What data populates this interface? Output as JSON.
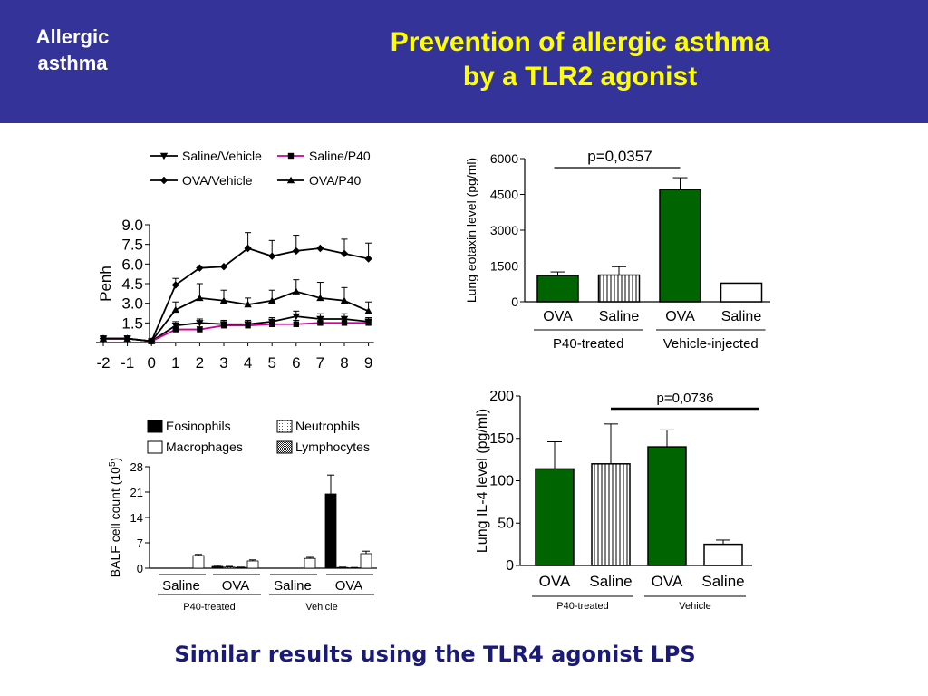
{
  "header": {
    "section_label": "Allergic asthma",
    "title_line1": "Prevention of allergic asthma",
    "title_line2": "by a TLR2 agonist",
    "background_color": "#333399",
    "title_color": "#ffff00"
  },
  "footer": {
    "text": "Similar results using the TLR4 agonist LPS",
    "color": "#1a1a7a"
  },
  "chart_data": [
    {
      "id": "penh",
      "type": "line",
      "ylabel": "Penh",
      "x": [
        -2,
        -1,
        0,
        1,
        2,
        3,
        4,
        5,
        6,
        7,
        8,
        9
      ],
      "xticks": [
        "-2",
        "-1",
        "0",
        "1",
        "2",
        "3",
        "4",
        "5",
        "6",
        "7",
        "8",
        "9"
      ],
      "yticks": [
        "1.5",
        "3.0",
        "4.5",
        "6.0",
        "7.5",
        "9.0"
      ],
      "ylim": [
        0,
        9
      ],
      "legend_position": "top",
      "series": [
        {
          "name": "Saline/Vehicle",
          "marker": "triangle-down",
          "color": "#000000",
          "values": [
            0.3,
            0.3,
            0.1,
            1.3,
            1.5,
            1.4,
            1.4,
            1.6,
            2.0,
            1.8,
            1.8,
            1.6
          ],
          "errors": [
            0.2,
            0.2,
            0.1,
            0.3,
            0.3,
            0.3,
            0.3,
            0.3,
            0.4,
            0.4,
            0.4,
            0.3
          ]
        },
        {
          "name": "Saline/P40",
          "marker": "square",
          "color": "#cc0099",
          "values": [
            0.3,
            0.3,
            0.1,
            1.0,
            1.0,
            1.3,
            1.3,
            1.4,
            1.4,
            1.5,
            1.5,
            1.5
          ],
          "errors": [
            0.2,
            0.2,
            0.1,
            0.2,
            0.2,
            0.3,
            0.3,
            0.3,
            0.3,
            0.3,
            0.3,
            0.3
          ]
        },
        {
          "name": "OVA/Vehicle",
          "marker": "diamond",
          "color": "#000000",
          "values": [
            0.3,
            0.3,
            0.1,
            4.4,
            5.7,
            5.8,
            7.2,
            6.6,
            7.0,
            7.2,
            6.8,
            6.4
          ],
          "errors": [
            0.2,
            0.2,
            0.1,
            0.5,
            0.0,
            0.0,
            1.2,
            1.2,
            1.2,
            0.0,
            1.1,
            1.2
          ]
        },
        {
          "name": "OVA/P40",
          "marker": "triangle-up",
          "color": "#000000",
          "values": [
            0.3,
            0.3,
            0.1,
            2.5,
            3.4,
            3.2,
            2.9,
            3.2,
            3.9,
            3.4,
            3.2,
            2.4
          ],
          "errors": [
            0.2,
            0.2,
            0.1,
            0.6,
            1.1,
            0.8,
            0.5,
            0.8,
            0.9,
            1.2,
            1.0,
            0.7
          ]
        }
      ]
    },
    {
      "id": "eotaxin",
      "type": "bar",
      "ylabel": "Lung eotaxin level (pg/ml)",
      "ylim": [
        0,
        6000
      ],
      "yticks": [
        "0",
        "1500",
        "3000",
        "4500",
        "6000"
      ],
      "categories": [
        "OVA",
        "Saline",
        "OVA",
        "Saline"
      ],
      "values": [
        1100,
        1120,
        4700,
        780
      ],
      "errors": [
        150,
        350,
        500,
        0
      ],
      "fills": [
        "green",
        "vertical-lines",
        "green",
        "white"
      ],
      "groups": [
        {
          "label": "P40-treated",
          "span": [
            0,
            1
          ]
        },
        {
          "label": "Vehicle-injected",
          "span": [
            2,
            3
          ]
        }
      ],
      "annotation": {
        "text": "p=0,0357",
        "span": [
          0,
          2
        ]
      }
    },
    {
      "id": "balf",
      "type": "bar",
      "ylabel": "BALF cell count (10",
      "ylabel_exponent": "5",
      "ylabel_suffix": ")",
      "ylim": [
        0,
        28
      ],
      "yticks": [
        "0",
        "7",
        "14",
        "21",
        "28"
      ],
      "categories": [
        "Saline",
        "OVA",
        "Saline",
        "OVA"
      ],
      "series": [
        {
          "name": "Eosinophils",
          "fill": "black",
          "values": [
            0,
            0.5,
            0,
            20.5
          ],
          "errors": [
            0,
            0.3,
            0,
            5.2
          ]
        },
        {
          "name": "Neutrophils",
          "fill": "dots",
          "values": [
            0,
            0.3,
            0,
            0.2
          ],
          "errors": [
            0,
            0.2,
            0,
            0.1
          ]
        },
        {
          "name": "Lymphocytes",
          "fill": "checker",
          "values": [
            0,
            0.2,
            0,
            0.1
          ],
          "errors": [
            0,
            0.1,
            0,
            0.1
          ]
        },
        {
          "name": "Macrophages",
          "fill": "white",
          "values": [
            3.5,
            2.0,
            2.7,
            4.0
          ],
          "errors": [
            0.3,
            0.3,
            0.3,
            0.7
          ]
        }
      ],
      "groups": [
        {
          "label": "P40-treated",
          "span": [
            0,
            1
          ]
        },
        {
          "label": "Vehicle",
          "span": [
            2,
            3
          ]
        }
      ]
    },
    {
      "id": "il4",
      "type": "bar",
      "ylabel": "Lung IL-4 level (pg/ml)",
      "ylim": [
        0,
        200
      ],
      "yticks": [
        "0",
        "50",
        "100",
        "150",
        "200"
      ],
      "categories": [
        "OVA",
        "Saline",
        "OVA",
        "Saline"
      ],
      "values": [
        114,
        120,
        140,
        25
      ],
      "errors": [
        32,
        47,
        20,
        5
      ],
      "fills": [
        "green",
        "vertical-lines",
        "green",
        "white"
      ],
      "groups": [
        {
          "label": "P40-treated",
          "span": [
            0,
            1
          ]
        },
        {
          "label": "Vehicle",
          "span": [
            2,
            3
          ]
        }
      ],
      "annotation": {
        "text": "p=0,0736",
        "span": [
          1,
          3
        ]
      }
    }
  ]
}
